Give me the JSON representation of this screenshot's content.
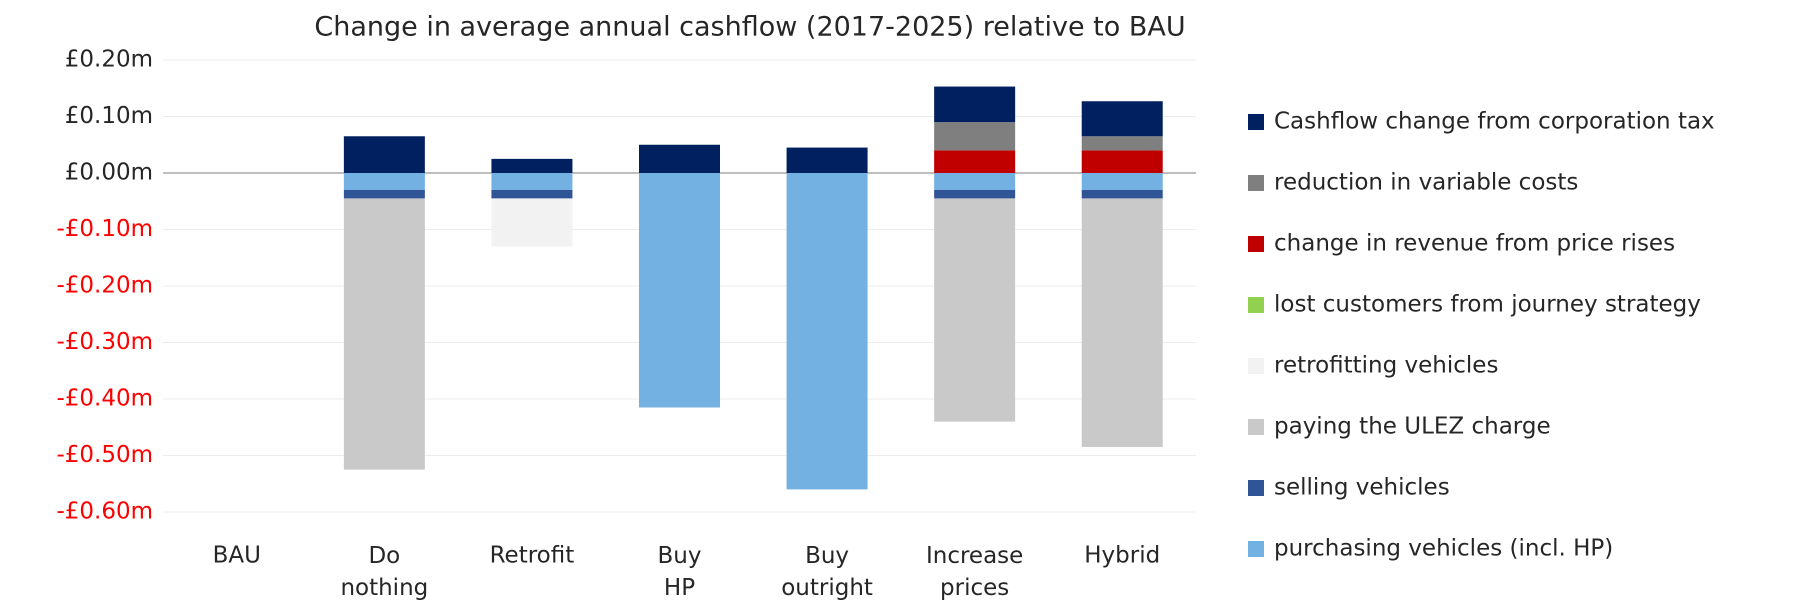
{
  "chart_data": {
    "type": "bar",
    "stacked": true,
    "title": "Change in average annual cashflow (2017-2025) relative to BAU",
    "categories": [
      "BAU",
      "Do nothing",
      "Retrofit",
      "Buy HP",
      "Buy outright",
      "Increase prices",
      "Hybrid"
    ],
    "series": [
      {
        "name": "Cashflow change from corporation tax",
        "color": "#002060",
        "values": [
          0,
          0.065,
          0.025,
          0.05,
          0.045,
          0.063,
          0.062
        ]
      },
      {
        "name": "reduction in variable costs",
        "color": "#7f7f7f",
        "values": [
          0,
          0,
          0,
          0,
          0,
          0.05,
          0.025
        ]
      },
      {
        "name": "change in revenue from price rises",
        "color": "#c00000",
        "values": [
          0,
          0,
          0,
          0,
          0,
          0.04,
          0.04
        ]
      },
      {
        "name": "lost customers from journey strategy",
        "color": "#92d050",
        "values": [
          0,
          0,
          0,
          0,
          0,
          0,
          0
        ]
      },
      {
        "name": "retrofitting vehicles",
        "color": "#f2f2f2",
        "values": [
          0,
          0,
          -0.085,
          0,
          0,
          0,
          0
        ]
      },
      {
        "name": "paying the ULEZ charge",
        "color": "#c9c9c9",
        "values": [
          0,
          -0.48,
          0,
          0,
          0,
          -0.395,
          -0.44
        ]
      },
      {
        "name": "selling vehicles",
        "color": "#2f5597",
        "values": [
          0,
          -0.015,
          -0.015,
          0,
          0,
          -0.015,
          -0.015
        ]
      },
      {
        "name": "purchasing vehicles (incl. HP)",
        "color": "#74b1e3",
        "values": [
          0,
          -0.03,
          -0.03,
          -0.415,
          -0.56,
          -0.03,
          -0.03
        ]
      }
    ],
    "ylim": [
      -0.6,
      0.2
    ],
    "yticks": [
      {
        "value": 0.2,
        "label": "£0.20m"
      },
      {
        "value": 0.1,
        "label": "£0.10m"
      },
      {
        "value": 0,
        "label": "£0.00m"
      },
      {
        "value": -0.1,
        "label": "-£0.10m"
      },
      {
        "value": -0.2,
        "label": "-£0.20m"
      },
      {
        "value": -0.3,
        "label": "-£0.30m"
      },
      {
        "value": -0.4,
        "label": "-£0.40m"
      },
      {
        "value": -0.5,
        "label": "-£0.50m"
      },
      {
        "value": -0.6,
        "label": "-£0.60m"
      }
    ],
    "negative_tick_color": "#ff0000",
    "grid": true,
    "legend": "right"
  }
}
